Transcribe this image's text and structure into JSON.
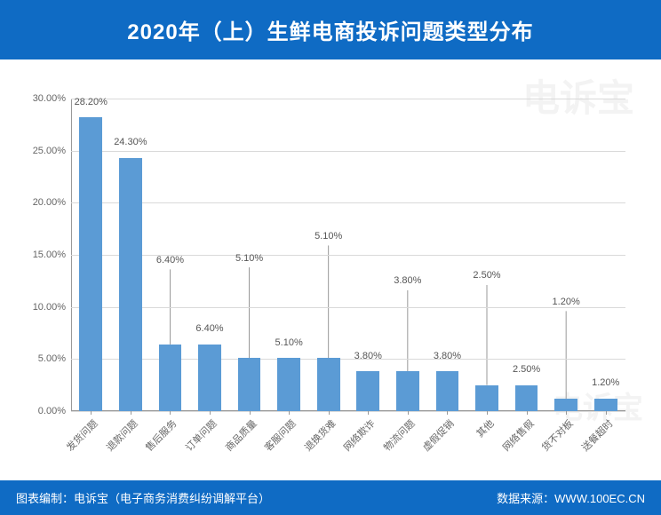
{
  "title": "2020年（上）生鲜电商投诉问题类型分布",
  "footer_left": "图表编制：电诉宝（电子商务消费纠纷调解平台）",
  "footer_right": "数据来源：WWW.100EC.CN",
  "watermark_main": "电诉宝",
  "watermark_sub": "电子商务消费纠纷调解平台",
  "chart": {
    "type": "bar",
    "bar_color": "#5b9bd5",
    "grid_color": "#d9d9d9",
    "axis_color": "#999999",
    "background_color": "#ffffff",
    "label_color": "#555555",
    "tick_color": "#666666",
    "label_fontsize": 11,
    "tick_fontsize": 11,
    "bar_width_ratio": 0.58,
    "y_max": 30.0,
    "y_min": 0.0,
    "y_ticks": [
      0.0,
      5.0,
      10.0,
      15.0,
      20.0,
      25.0,
      30.0
    ],
    "y_tick_labels": [
      "0.00%",
      "5.00%",
      "10.00%",
      "15.00%",
      "20.00%",
      "25.00%",
      "30.00%"
    ],
    "categories": [
      "发货问题",
      "退款问题",
      "售后服务",
      "订单问题",
      "商品质量",
      "客服问题",
      "退换货难",
      "网络欺诈",
      "物流问题",
      "虚假促销",
      "其他",
      "网络售假",
      "货不对板",
      "送餐超时"
    ],
    "values": [
      28.2,
      24.3,
      6.4,
      6.4,
      5.1,
      5.1,
      5.1,
      3.8,
      3.8,
      3.8,
      2.5,
      2.5,
      1.2,
      1.2
    ],
    "value_labels": [
      "28.20%",
      "24.30%",
      "6.40%",
      "6.40%",
      "5.10%",
      "5.10%",
      "5.10%",
      "3.80%",
      "3.80%",
      "3.80%",
      "2.50%",
      "2.50%",
      "1.20%",
      "1.20%"
    ],
    "label_offsets": [
      {
        "dy_pct": 0,
        "leader": false
      },
      {
        "dy_pct": 0,
        "leader": false
      },
      {
        "dy_pct": 22,
        "leader": true
      },
      {
        "dy_pct": 0,
        "leader": false
      },
      {
        "dy_pct": 27,
        "leader": true
      },
      {
        "dy_pct": 0,
        "leader": false
      },
      {
        "dy_pct": 34,
        "leader": true
      },
      {
        "dy_pct": 0,
        "leader": false
      },
      {
        "dy_pct": 24,
        "leader": true
      },
      {
        "dy_pct": 0,
        "leader": false
      },
      {
        "dy_pct": 30,
        "leader": true
      },
      {
        "dy_pct": 0,
        "leader": false
      },
      {
        "dy_pct": 26,
        "leader": true
      },
      {
        "dy_pct": 0,
        "leader": false
      }
    ]
  }
}
